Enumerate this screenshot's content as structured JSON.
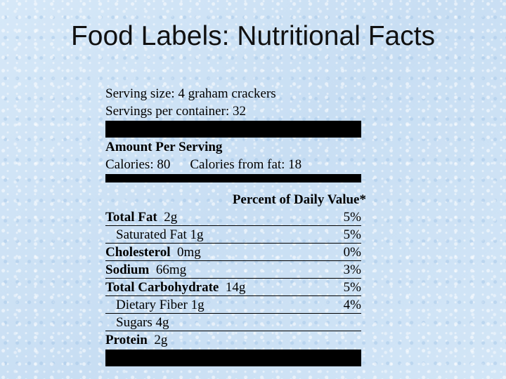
{
  "slide": {
    "title": "Food Labels: Nutritional Facts"
  },
  "label": {
    "serving_size": "Serving size:  4 graham crackers",
    "servings_per_container": "Servings per container:  32",
    "amount_per_serving": "Amount Per Serving",
    "calories": "Calories:  80",
    "calories_from_fat": "Calories from fat:  18",
    "pdv_header": "Percent of Daily Value*",
    "nutrients": [
      {
        "bold_name": "Total Fat",
        "amount": "2g",
        "percent": "5%"
      },
      {
        "bold_name": "",
        "amount": "Saturated Fat  1g",
        "percent": "5%"
      },
      {
        "bold_name": "Cholesterol",
        "amount": "0mg",
        "percent": "0%"
      },
      {
        "bold_name": "Sodium",
        "amount": "66mg",
        "percent": "3%"
      },
      {
        "bold_name": "Total Carbohydrate",
        "amount": "14g",
        "percent": "5%"
      },
      {
        "bold_name": "",
        "amount": "Dietary Fiber  1g",
        "percent": "4%"
      },
      {
        "bold_name": "",
        "amount": "Sugars  4g",
        "percent": ""
      },
      {
        "bold_name": "Protein",
        "amount": "2g",
        "percent": ""
      }
    ]
  }
}
